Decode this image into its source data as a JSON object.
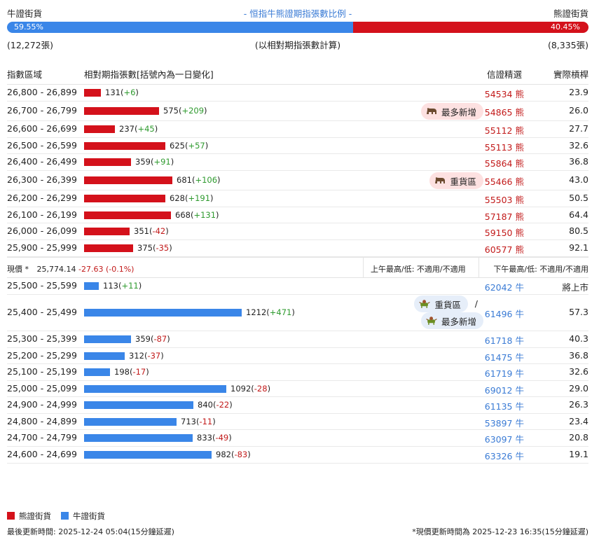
{
  "header": {
    "bull_label": "牛證街貨",
    "title": "- 恒指牛熊證期指張數比例 -",
    "bear_label": "熊證街貨"
  },
  "ratio": {
    "bull_pct": "59.55%",
    "bear_pct": "40.45%",
    "bull_fraction": 0.5955
  },
  "counts": {
    "bull": "(12,272張)",
    "note": "(以相對期指張數計算)",
    "bear": "(8,335張)"
  },
  "columns": {
    "range": "指數區域",
    "contracts": "相對期指張數[括號內為一日變化]",
    "warrant": "信證精選",
    "leverage": "實際槓桿"
  },
  "colors": {
    "bear": "#d4111b",
    "bull": "#3a86e8",
    "up": "#2e9a2e",
    "down": "#c21a1a"
  },
  "bear_rows": [
    {
      "range": "26,800 - 26,899",
      "value": 131,
      "count": "131",
      "change": "+6",
      "code": "54534 熊",
      "leverage": "23.9",
      "badge": ""
    },
    {
      "range": "26,700 - 26,799",
      "value": 575,
      "count": "575",
      "change": "+209",
      "code": "54865 熊",
      "leverage": "26.0",
      "badge": "最多新增"
    },
    {
      "range": "26,600 - 26,699",
      "value": 237,
      "count": "237",
      "change": "+45",
      "code": "55112 熊",
      "leverage": "27.7",
      "badge": ""
    },
    {
      "range": "26,500 - 26,599",
      "value": 625,
      "count": "625",
      "change": "+57",
      "code": "55113 熊",
      "leverage": "32.6",
      "badge": ""
    },
    {
      "range": "26,400 - 26,499",
      "value": 359,
      "count": "359",
      "change": "+91",
      "code": "55864 熊",
      "leverage": "36.8",
      "badge": ""
    },
    {
      "range": "26,300 - 26,399",
      "value": 681,
      "count": "681",
      "change": "+106",
      "code": "55466 熊",
      "leverage": "43.0",
      "badge": "重貨區"
    },
    {
      "range": "26,200 - 26,299",
      "value": 628,
      "count": "628",
      "change": "+191",
      "code": "55503 熊",
      "leverage": "50.5",
      "badge": ""
    },
    {
      "range": "26,100 - 26,199",
      "value": 668,
      "count": "668",
      "change": "+131",
      "code": "57187 熊",
      "leverage": "64.4",
      "badge": ""
    },
    {
      "range": "26,000 - 26,099",
      "value": 351,
      "count": "351",
      "change": "-42",
      "code": "59150 熊",
      "leverage": "80.5",
      "badge": ""
    },
    {
      "range": "25,900 - 25,999",
      "value": 375,
      "count": "375",
      "change": "-35",
      "code": "60577 熊",
      "leverage": "92.1",
      "badge": ""
    }
  ],
  "price": {
    "label": "現價 *",
    "value": "25,774.14",
    "change": "-27.63 (-0.1%)",
    "am": "上午最高/低: 不適用/不適用",
    "pm": "下午最高/低: 不適用/不適用"
  },
  "bull_rows": [
    {
      "range": "25,500 - 25,599",
      "value": 113,
      "count": "113",
      "change": "+11",
      "code": "62042 牛",
      "leverage": "將上市"
    },
    {
      "range": "25,400 - 25,499",
      "value": 1212,
      "count": "1212",
      "change": "+471",
      "code": "61496 牛",
      "leverage": "57.3",
      "badge1": "重貨區",
      "badge2": "最多新增",
      "sep": "/"
    },
    {
      "range": "25,300 - 25,399",
      "value": 359,
      "count": "359",
      "change": "-87",
      "code": "61718 牛",
      "leverage": "40.3"
    },
    {
      "range": "25,200 - 25,299",
      "value": 312,
      "count": "312",
      "change": "-37",
      "code": "61475 牛",
      "leverage": "36.8"
    },
    {
      "range": "25,100 - 25,199",
      "value": 198,
      "count": "198",
      "change": "-17",
      "code": "61719 牛",
      "leverage": "32.6"
    },
    {
      "range": "25,000 - 25,099",
      "value": 1092,
      "count": "1092",
      "change": "-28",
      "code": "69012 牛",
      "leverage": "29.0"
    },
    {
      "range": "24,900 - 24,999",
      "value": 840,
      "count": "840",
      "change": "-22",
      "code": "61135 牛",
      "leverage": "26.3"
    },
    {
      "range": "24,800 - 24,899",
      "value": 713,
      "count": "713",
      "change": "-11",
      "code": "53897 牛",
      "leverage": "23.4"
    },
    {
      "range": "24,700 - 24,799",
      "value": 833,
      "count": "833",
      "change": "-49",
      "code": "63097 牛",
      "leverage": "20.8"
    },
    {
      "range": "24,600 - 24,699",
      "value": 982,
      "count": "982",
      "change": "-83",
      "code": "63326 牛",
      "leverage": "19.1"
    }
  ],
  "legend": {
    "bear": "熊證街貨",
    "bull": "牛證街貨"
  },
  "footer": {
    "updated": "最後更新時間: 2025-12-24 05:04(15分鐘延遲)",
    "price_updated": "*現價更新時間為 2025-12-23 16:35(15分鐘延遲)"
  }
}
